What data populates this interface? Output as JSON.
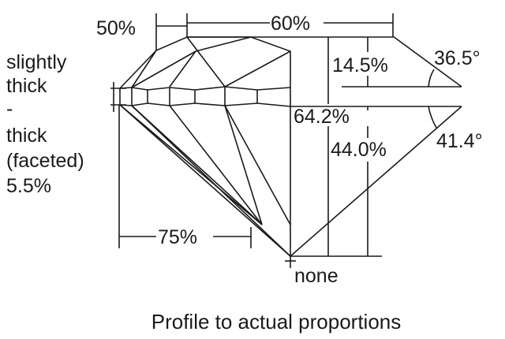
{
  "labels": {
    "crown_height_ratio": "50%",
    "table": "60%",
    "crown_height": "14.5%",
    "crown_angle": "36.5°",
    "total_depth": "64.2%",
    "pavilion_angle": "41.4°",
    "pavilion_depth": "44.0%",
    "lower_half": "75%",
    "culet": "none",
    "girdle_lines": [
      "slightly",
      "thick",
      "-",
      "thick",
      "(faceted)",
      "5.5%"
    ]
  },
  "caption": "Profile to actual proportions",
  "colors": {
    "line": "#1a1a1a",
    "background": "#ffffff"
  }
}
